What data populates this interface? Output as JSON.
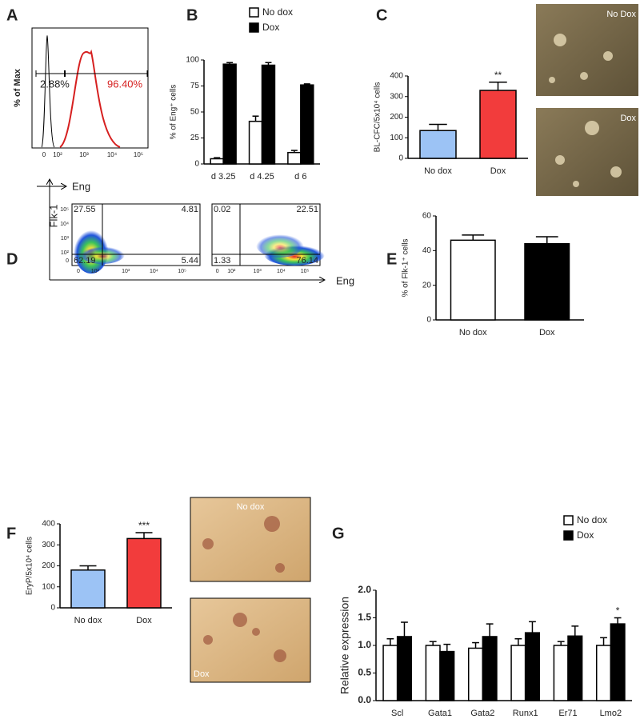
{
  "panels": [
    "A",
    "B",
    "C",
    "D",
    "E",
    "F",
    "G"
  ],
  "histogram_panel": {
    "ylabel": "% of Max",
    "xlabel": "Eng",
    "axis_ticks": [
      "0",
      "10²",
      "10³",
      "10⁴",
      "10⁵"
    ],
    "gates": [
      "2.88%",
      "96.40%"
    ]
  },
  "flow_panel": {
    "ylabel": "Flk-1",
    "xlabel": "Eng",
    "axis_ticks": [
      "0",
      "10²",
      "10³",
      "10⁴",
      "10⁵"
    ],
    "plots": [
      {
        "quadrants": [
          "27.55",
          "4.81",
          "62.19",
          "5.44"
        ]
      },
      {
        "quadrants": [
          "0.02",
          "22.51",
          "1.33",
          "76.14"
        ]
      }
    ]
  },
  "images": [
    {
      "label": "No Dox"
    },
    {
      "label": "Dox"
    },
    {
      "label": "No dox"
    },
    {
      "label": "Dox"
    }
  ],
  "chart_data": [
    {
      "type": "bar",
      "ylabel": "% of Eng⁺ cells",
      "categories": [
        "d 3.25",
        "d 4.25",
        "d 6"
      ],
      "series": [
        {
          "name": "No dox",
          "color": "#ffffff",
          "values": [
            5,
            41,
            11
          ],
          "errors": [
            1,
            5,
            2
          ]
        },
        {
          "name": "Dox",
          "color": "#000000",
          "values": [
            96,
            95,
            76
          ],
          "errors": [
            1.5,
            2.5,
            1
          ]
        }
      ],
      "ylim": [
        0,
        100
      ],
      "yticks": [
        0,
        25,
        50,
        75,
        100
      ]
    },
    {
      "type": "bar",
      "ylabel": "BL-CFC/5x10⁴ cells",
      "categories": [
        "No dox",
        "Dox"
      ],
      "series": [
        {
          "colors": [
            "#9cc3f5",
            "#f23c3c"
          ],
          "values": [
            135,
            330
          ],
          "errors": [
            30,
            40
          ]
        }
      ],
      "ylim": [
        0,
        400
      ],
      "yticks": [
        0,
        100,
        200,
        300,
        400
      ],
      "annotation": "**"
    },
    {
      "type": "bar",
      "ylabel": "% of Flk-1⁺ cells",
      "categories": [
        "No dox",
        "Dox"
      ],
      "series": [
        {
          "colors": [
            "#ffffff",
            "#000000"
          ],
          "values": [
            46,
            44
          ],
          "errors": [
            3,
            4
          ]
        }
      ],
      "ylim": [
        0,
        60
      ],
      "yticks": [
        0,
        20,
        40,
        60
      ]
    },
    {
      "type": "bar",
      "ylabel": "EryP/5x10⁴ cells",
      "categories": [
        "No dox",
        "Dox"
      ],
      "series": [
        {
          "colors": [
            "#9cc3f5",
            "#f23c3c"
          ],
          "values": [
            180,
            330
          ],
          "errors": [
            20,
            28
          ]
        }
      ],
      "ylim": [
        0,
        400
      ],
      "yticks": [
        0,
        100,
        200,
        300,
        400
      ],
      "annotation": "***"
    },
    {
      "type": "bar",
      "ylabel": "Relative expression",
      "categories": [
        "Scl",
        "Gata1",
        "Gata2",
        "Runx1",
        "Er71",
        "Lmo2"
      ],
      "series": [
        {
          "name": "No dox",
          "color": "#ffffff",
          "values": [
            1.0,
            1.0,
            0.95,
            1.0,
            1.0,
            1.0
          ],
          "errors": [
            0.12,
            0.07,
            0.1,
            0.12,
            0.07,
            0.14
          ]
        },
        {
          "name": "Dox",
          "color": "#000000",
          "values": [
            1.16,
            0.89,
            1.16,
            1.23,
            1.17,
            1.39
          ],
          "errors": [
            0.26,
            0.13,
            0.23,
            0.2,
            0.18,
            0.11
          ]
        }
      ],
      "ylim": [
        0,
        2
      ],
      "yticks": [
        {
          "value": 0,
          "label": "0.0"
        },
        {
          "value": 0.5,
          "label": "0.5"
        },
        {
          "value": 1,
          "label": "1.0"
        },
        {
          "value": 1.5,
          "label": "1.5"
        },
        {
          "value": 2,
          "label": "2.0"
        }
      ],
      "annotation": "*"
    }
  ]
}
